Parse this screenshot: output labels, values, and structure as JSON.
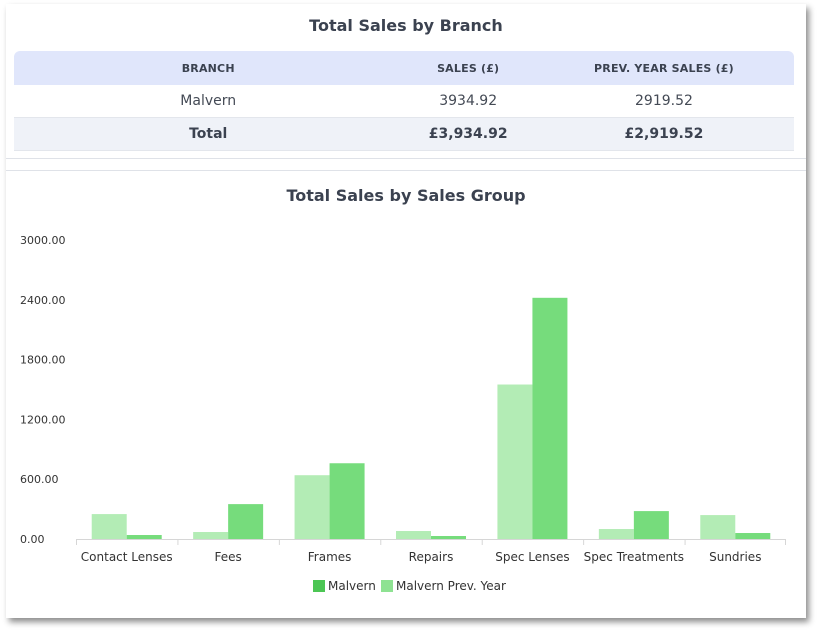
{
  "branch_panel": {
    "title": "Total Sales by Branch",
    "headers": [
      "BRANCH",
      "SALES (£)",
      "PREV. YEAR SALES (£)"
    ],
    "rows": [
      {
        "branch": "Malvern",
        "sales": "3934.92",
        "prev": "2919.52"
      }
    ],
    "total": {
      "label": "Total",
      "sales": "£3,934.92",
      "prev": "£2,919.52"
    }
  },
  "group_panel": {
    "title": "Total Sales by Sales Group"
  },
  "colors": {
    "current": "#76dc7c",
    "prev": "#b3ecb5",
    "legend_current": "#4cc654",
    "legend_prev": "#8ee292"
  },
  "chart_data": {
    "type": "bar",
    "title": "Total Sales by Sales Group",
    "categories": [
      "Contact Lenses",
      "Fees",
      "Frames",
      "Repairs",
      "Spec Lenses",
      "Spec Treatments",
      "Sundries"
    ],
    "series": [
      {
        "name": "Malvern Prev. Year",
        "values": [
          250,
          70,
          640,
          80,
          1550,
          100,
          240
        ]
      },
      {
        "name": "Malvern",
        "values": [
          40,
          350,
          760,
          30,
          2420,
          280,
          60
        ]
      }
    ],
    "legend": [
      "Malvern",
      "Malvern Prev. Year"
    ],
    "yticks": [
      "0.00",
      "600.00",
      "1200.00",
      "1800.00",
      "2400.00",
      "3000.00"
    ],
    "ylim": [
      0,
      3000
    ],
    "legend_position": "bottom",
    "grid": false
  }
}
